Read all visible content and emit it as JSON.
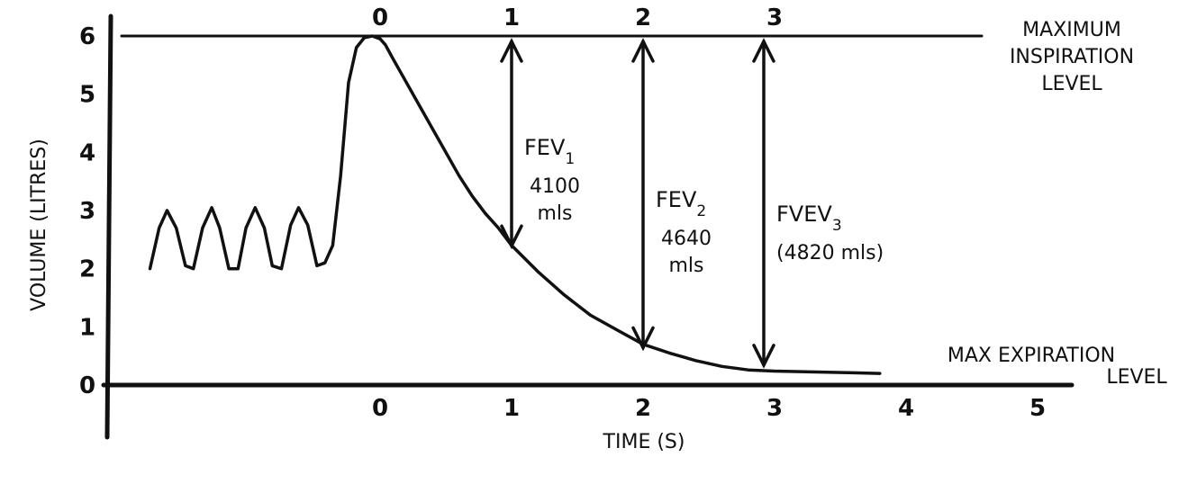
{
  "chart_data": {
    "type": "line",
    "xlabel": "TIME (S)",
    "ylabel": "VOLUME (LITRES)",
    "xlim": [
      -2.0,
      5.0
    ],
    "ylim": [
      0,
      6
    ],
    "x_ticks": [
      "0",
      "1",
      "2",
      "3",
      "4",
      "5"
    ],
    "top_ticks": [
      "0",
      "1",
      "2",
      "3"
    ],
    "y_ticks": [
      "0",
      "1",
      "2",
      "3",
      "4",
      "5",
      "6"
    ],
    "grid": false,
    "reference_lines": [
      {
        "label": [
          "MAXIMUM",
          "INSPIRATION",
          "LEVEL"
        ],
        "y": 6
      },
      {
        "label": [
          "MAX EXPIRATION",
          "LEVEL"
        ],
        "y": 0.25
      }
    ],
    "series": [
      {
        "x": [
          -1.75,
          -1.68,
          -1.62,
          -1.55,
          -1.48,
          -1.42,
          -1.35,
          -1.28,
          -1.22,
          -1.15,
          -1.08,
          -1.02,
          -0.95,
          -0.88,
          -0.82,
          -0.75,
          -0.68,
          -0.62,
          -0.55,
          -0.48,
          -0.42,
          -0.36,
          -0.3,
          -0.24,
          -0.18,
          -0.12,
          -0.06,
          0.0,
          0.04,
          0.1,
          0.2,
          0.3,
          0.4,
          0.5,
          0.6,
          0.7,
          0.8,
          0.9,
          1.0,
          1.2,
          1.4,
          1.6,
          1.8,
          2.0,
          2.2,
          2.4,
          2.6,
          2.8,
          3.0,
          3.2,
          3.4,
          3.6,
          3.8
        ],
        "y": [
          2.0,
          2.7,
          3.0,
          2.7,
          2.05,
          2.0,
          2.7,
          3.05,
          2.7,
          2.0,
          2.0,
          2.7,
          3.05,
          2.7,
          2.05,
          2.0,
          2.75,
          3.05,
          2.75,
          2.05,
          2.1,
          2.4,
          3.6,
          5.2,
          5.8,
          5.97,
          6.0,
          5.95,
          5.85,
          5.6,
          5.2,
          4.8,
          4.4,
          4.0,
          3.6,
          3.25,
          2.95,
          2.7,
          2.4,
          1.95,
          1.55,
          1.2,
          0.95,
          0.7,
          0.55,
          0.42,
          0.32,
          0.26,
          0.24,
          0.23,
          0.22,
          0.21,
          0.2
        ]
      }
    ],
    "annotations": [
      {
        "label": "FEV",
        "subscript": "1",
        "value_lines": [
          "4100",
          "mls"
        ],
        "x": 1,
        "y_top": 6,
        "y_bottom": 2.3
      },
      {
        "label": "FEV",
        "subscript": "2",
        "value_lines": [
          "4640",
          "mls"
        ],
        "x": 2,
        "y_top": 6,
        "y_bottom": 0.55
      },
      {
        "label": "FVEV",
        "subscript": "3",
        "value_lines": [
          "(4820 mls)"
        ],
        "x": 3,
        "y_top": 6,
        "y_bottom": 0.25
      }
    ]
  }
}
